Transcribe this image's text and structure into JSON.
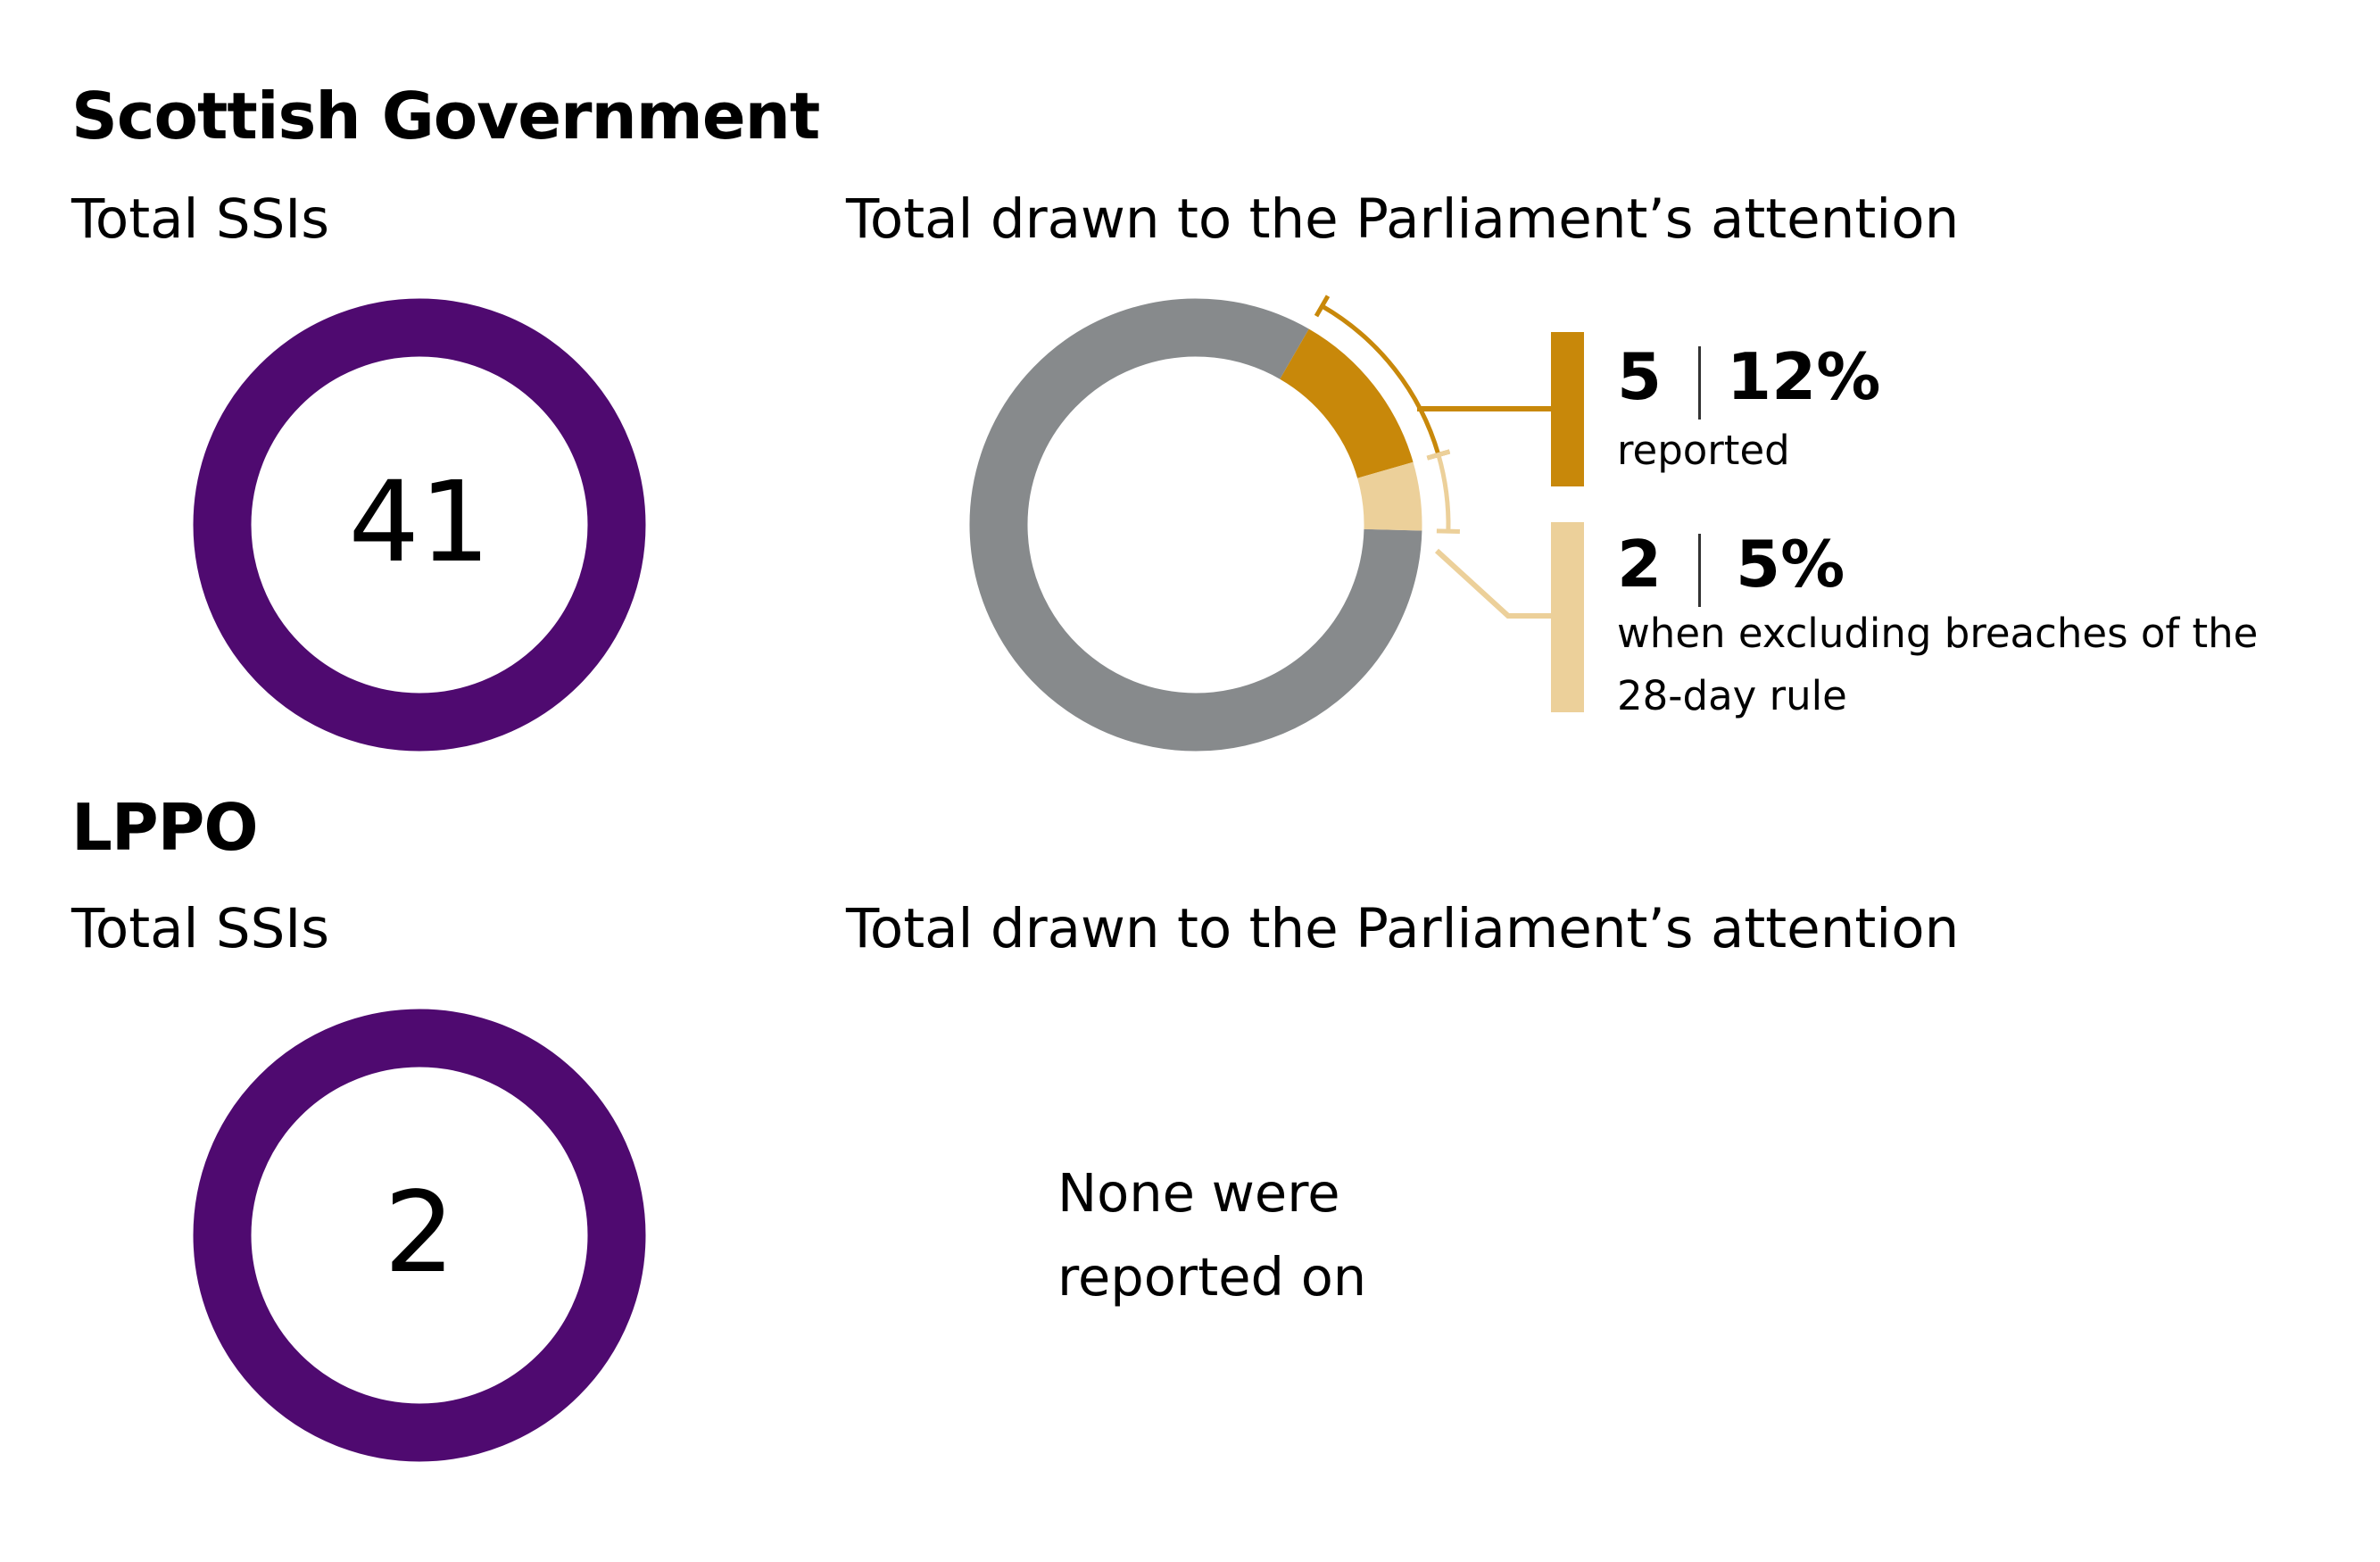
{
  "sections": {
    "scottish_government": {
      "heading": "Scottish Government",
      "total_label": "Total SSIs",
      "total_value": "41",
      "attention_label": "Total drawn to the Parliament’s attention",
      "reported": {
        "count": "5",
        "percent": "12%",
        "description": "reported"
      },
      "excluding": {
        "count": "2",
        "percent": "5%",
        "description_line1": "when excluding breaches of the",
        "description_line2": "28-day rule"
      }
    },
    "lppo": {
      "heading": "LPPO",
      "total_label": "Total SSIs",
      "total_value": "2",
      "attention_label": "Total drawn to the Parliament’s attention",
      "none_line1": "None were",
      "none_line2": "reported on"
    }
  },
  "colors": {
    "total_ring": "#4f0a70",
    "remainder": "#878a8c",
    "reported": "#c8880a",
    "excluding": "#ecd09a",
    "reported_callout": "#c8880a",
    "excluding_callout": "#ecd09a"
  },
  "chart_data": [
    {
      "type": "pie",
      "subtype": "donut",
      "title": "Total SSIs",
      "categories": [
        "Total SSIs"
      ],
      "values": [
        41
      ]
    },
    {
      "type": "pie",
      "subtype": "donut",
      "title": "Total drawn to the Parliament’s attention",
      "total": 41,
      "categories": [
        "reported",
        "when excluding breaches of the 28-day rule"
      ],
      "values": [
        5,
        2
      ],
      "percent_labels": [
        "12%",
        "5%"
      ]
    },
    {
      "type": "pie",
      "subtype": "donut",
      "title": "Total SSIs",
      "categories": [
        "Total SSIs"
      ],
      "values": [
        2
      ]
    }
  ]
}
